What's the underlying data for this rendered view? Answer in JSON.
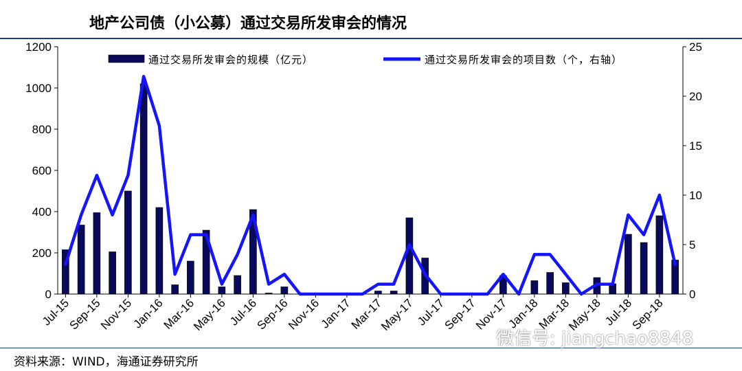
{
  "title": "地产公司债（小公募）通过交易所发审会的情况",
  "source": "资料来源：WIND，海通证券研究所",
  "watermark": "微信号: jiangchao8848",
  "chart_data": {
    "type": "bar",
    "title": "地产公司债（小公募）通过交易所发审会的情况",
    "categories": [
      "Jul-15",
      "Aug-15",
      "Sep-15",
      "Oct-15",
      "Nov-15",
      "Dec-15",
      "Jan-16",
      "Feb-16",
      "Mar-16",
      "Apr-16",
      "May-16",
      "Jun-16",
      "Jul-16",
      "Aug-16",
      "Sep-16",
      "Oct-16",
      "Nov-16",
      "Dec-16",
      "Jan-17",
      "Feb-17",
      "Mar-17",
      "Apr-17",
      "May-17",
      "Jun-17",
      "Jul-17",
      "Aug-17",
      "Sep-17",
      "Oct-17",
      "Nov-17",
      "Dec-17",
      "Jan-18",
      "Feb-18",
      "Mar-18",
      "Apr-18",
      "May-18",
      "Jun-18",
      "Jul-18",
      "Aug-18",
      "Sep-18",
      "Oct-18"
    ],
    "x_tick_labels": [
      "Jul-15",
      "Sep-15",
      "Nov-15",
      "Jan-16",
      "Mar-16",
      "May-16",
      "Jul-16",
      "Sep-16",
      "Nov-16",
      "Jan-17",
      "Mar-17",
      "May-17",
      "Jul-17",
      "Sep-17",
      "Nov-17",
      "Jan-18",
      "Mar-18",
      "May-18",
      "Jul-18",
      "Sep-18"
    ],
    "series": [
      {
        "name": "通过交易所发审会的规模（亿元）",
        "type": "bar",
        "axis": "left",
        "color": "#0a0a5a",
        "values": [
          215,
          335,
          395,
          205,
          500,
          1020,
          420,
          45,
          160,
          310,
          35,
          90,
          410,
          5,
          35,
          0,
          0,
          0,
          0,
          0,
          15,
          15,
          370,
          175,
          0,
          0,
          0,
          0,
          90,
          0,
          65,
          105,
          55,
          0,
          80,
          50,
          290,
          250,
          380,
          165
        ]
      },
      {
        "name": "通过交易所发审会的项目数（个，右轴）",
        "type": "line",
        "axis": "right",
        "color": "#1414ff",
        "values": [
          3,
          8,
          12,
          8,
          12,
          22,
          17,
          2,
          6,
          6,
          1,
          4,
          8,
          1,
          2,
          0,
          0,
          0,
          0,
          0,
          1,
          1,
          5,
          2,
          0,
          0,
          0,
          0,
          2,
          0,
          4,
          4,
          2,
          0,
          1,
          1,
          8,
          6,
          10,
          3
        ]
      }
    ],
    "y_left": {
      "min": 0,
      "max": 1200,
      "ticks": [
        "0",
        "200",
        "400",
        "600",
        "800",
        "1000",
        "1200"
      ]
    },
    "y_right": {
      "min": 0,
      "max": 25,
      "ticks": [
        "0",
        "5",
        "10",
        "15",
        "20",
        "25"
      ]
    },
    "legend_placement": "top",
    "grid": false
  }
}
